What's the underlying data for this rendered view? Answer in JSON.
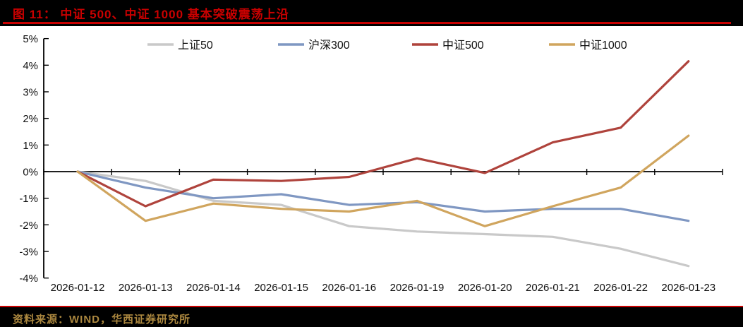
{
  "header": {
    "title": "图 11： 中证 500、中证 1000 基本突破震荡上沿"
  },
  "footer": {
    "source": "资料来源：WIND，华西证券研究所"
  },
  "colors": {
    "accent_red": "#c80000",
    "source_gold": "#ab873f",
    "header_bg": "#000000",
    "chart_bg": "#ffffff",
    "axis_black": "#000000",
    "series_sz50": "#c9c9c9",
    "series_hs300": "#7f97c2",
    "series_zz500": "#af433c",
    "series_zz1000": "#d0a55e"
  },
  "chart_data": {
    "type": "line",
    "title": "",
    "xlabel": "",
    "ylabel": "",
    "grid": false,
    "legend_position": "top",
    "ylim": [
      -4,
      5
    ],
    "y_tick_format": "percent",
    "categories": [
      "2026-01-12",
      "2026-01-13",
      "2026-01-14",
      "2026-01-15",
      "2026-01-16",
      "2026-01-19",
      "2026-01-20",
      "2026-01-21",
      "2026-01-22",
      "2026-01-23"
    ],
    "series": [
      {
        "name": "上证50",
        "color": "#c9c9c9",
        "values": [
          0,
          -0.35,
          -1.1,
          -1.25,
          -2.05,
          -2.25,
          -2.35,
          -2.45,
          -2.9,
          -3.55
        ]
      },
      {
        "name": "沪深300",
        "color": "#7f97c2",
        "values": [
          0,
          -0.6,
          -1.0,
          -0.85,
          -1.25,
          -1.15,
          -1.5,
          -1.4,
          -1.4,
          -1.85
        ]
      },
      {
        "name": "中证500",
        "color": "#af433c",
        "values": [
          0,
          -1.3,
          -0.3,
          -0.35,
          -0.2,
          0.5,
          -0.05,
          1.1,
          1.65,
          4.15
        ]
      },
      {
        "name": "中证1000",
        "color": "#d0a55e",
        "values": [
          0,
          -1.85,
          -1.2,
          -1.4,
          -1.5,
          -1.1,
          -2.05,
          -1.3,
          -0.6,
          1.35
        ]
      }
    ]
  }
}
